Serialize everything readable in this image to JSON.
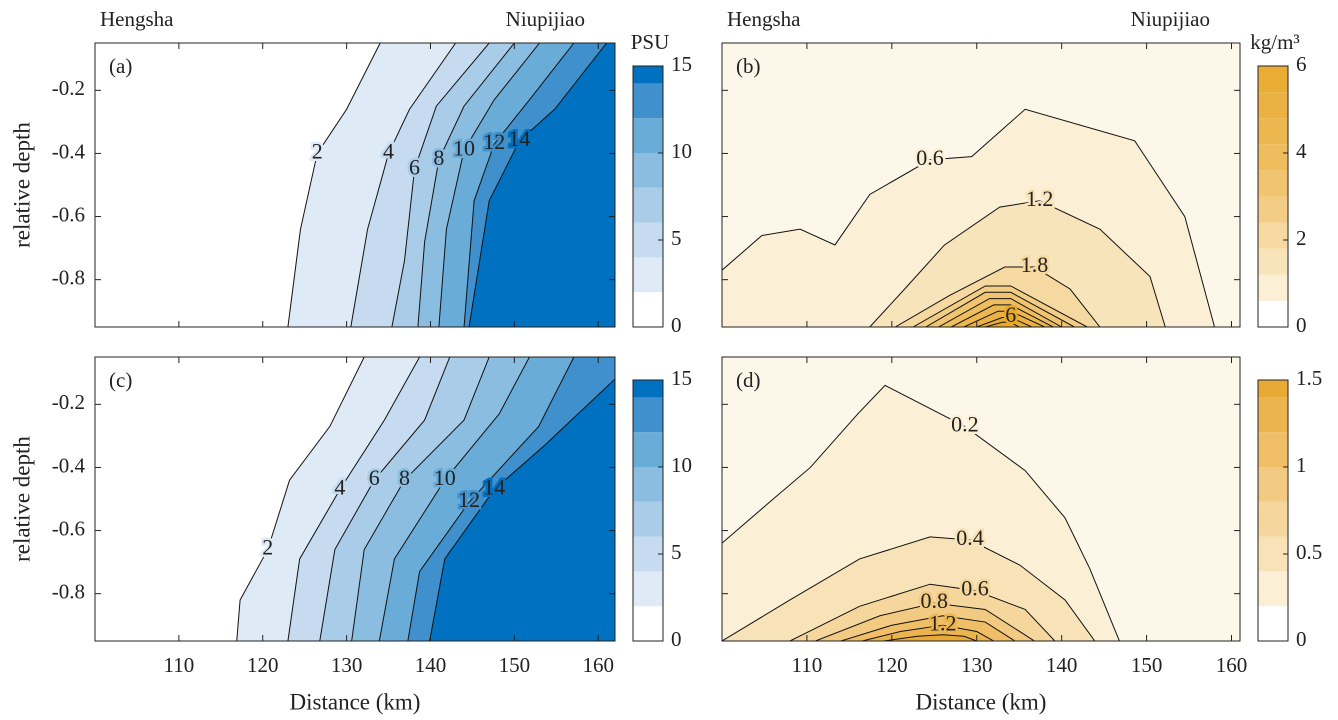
{
  "chart_data": [
    {
      "type": "contour",
      "panel_label": "(a)",
      "top_left_label": "Hengsha",
      "top_right_label": "Niupijiao",
      "colorbar_title": "PSU",
      "y_label": "relative depth",
      "xlim": [
        100,
        162
      ],
      "xticks": [
        110,
        120,
        130,
        140,
        150,
        160
      ],
      "xtick_labels": false,
      "ylim": [
        -0.95,
        -0.05
      ],
      "yticks": [
        -0.8,
        -0.6,
        -0.4,
        -0.2
      ],
      "ytick_labels": true,
      "clim": [
        0,
        15
      ],
      "cticks": [
        0,
        5,
        10,
        15
      ],
      "background": "#ffffff",
      "fill_side": "right",
      "contours": [
        {
          "level": 2,
          "color": "#deebf7",
          "labeled": true,
          "x": [
            134,
            130,
            126.5,
            124.5,
            123
          ],
          "y": [
            -0.05,
            -0.26,
            -0.4,
            -0.64,
            -0.95
          ]
        },
        {
          "level": 4,
          "color": "#c6dbef",
          "labeled": true,
          "x": [
            143,
            137.5,
            135,
            132.5,
            130.5
          ],
          "y": [
            -0.05,
            -0.26,
            -0.4,
            -0.64,
            -0.95
          ]
        },
        {
          "level": 6,
          "color": "#a9cde9",
          "labeled": true,
          "x": [
            147,
            140.7,
            138.1,
            136.9,
            135.4
          ],
          "y": [
            -0.05,
            -0.25,
            -0.45,
            -0.74,
            -0.95
          ]
        },
        {
          "level": 8,
          "color": "#8bbde0",
          "labeled": true,
          "x": [
            150,
            144,
            141,
            139.3,
            138.5
          ],
          "y": [
            -0.05,
            -0.25,
            -0.42,
            -0.68,
            -0.95
          ]
        },
        {
          "level": 10,
          "color": "#69acd8",
          "labeled": true,
          "x": [
            153,
            147.6,
            144,
            141.9,
            141
          ],
          "y": [
            -0.05,
            -0.23,
            -0.39,
            -0.64,
            -0.95
          ]
        },
        {
          "level": 12,
          "color": "#3f90cc",
          "labeled": true,
          "x": [
            157.1,
            151.8,
            147.6,
            145.2,
            144
          ],
          "y": [
            -0.05,
            -0.23,
            -0.37,
            -0.55,
            -0.95
          ]
        },
        {
          "level": 14,
          "color": "#0070c0",
          "labeled": true,
          "x": [
            161,
            154.8,
            150.6,
            147,
            144.6
          ],
          "y": [
            -0.05,
            -0.26,
            -0.36,
            -0.55,
            -0.95
          ]
        }
      ]
    },
    {
      "type": "contour",
      "panel_label": "(b)",
      "top_left_label": "Hengsha",
      "top_right_label": "Niupijiao",
      "colorbar_title": "kg/m³",
      "xlim": [
        100,
        161
      ],
      "xticks": [
        110,
        120,
        130,
        140,
        150,
        160
      ],
      "xtick_labels": false,
      "ylim": [
        -0.95,
        -0.05
      ],
      "yticks": [
        -0.8,
        -0.6,
        -0.4,
        -0.2
      ],
      "ytick_labels": false,
      "clim": [
        0,
        6
      ],
      "cticks": [
        0,
        2,
        4,
        6
      ],
      "background": "#fdf7ea",
      "fill_side": "below",
      "contours": [
        {
          "level": 0.6,
          "color": "#fbefd6",
          "labeled": true,
          "x": [
            100,
            104.7,
            109.2,
            113.3,
            117.4,
            124.5,
            129.4,
            135.7,
            148.6,
            154.5,
            158
          ],
          "y": [
            -0.77,
            -0.66,
            -0.64,
            -0.69,
            -0.53,
            -0.42,
            -0.41,
            -0.26,
            -0.36,
            -0.6,
            -0.95
          ]
        },
        {
          "level": 1.2,
          "color": "#f8e4bb",
          "labeled": true,
          "x": [
            117.4,
            121.5,
            126.2,
            132.7,
            137.4,
            144.5,
            150.4,
            152.2
          ],
          "y": [
            -0.95,
            -0.83,
            -0.69,
            -0.57,
            -0.55,
            -0.64,
            -0.79,
            -0.95
          ]
        },
        {
          "level": 1.8,
          "color": "#f6d9a0",
          "labeled": true,
          "x": [
            120.4,
            126.8,
            133.3,
            136.8,
            141,
            144.5
          ],
          "y": [
            -0.95,
            -0.85,
            -0.76,
            -0.76,
            -0.83,
            -0.95
          ]
        },
        {
          "level": 2.4,
          "color": "#f3cd85",
          "labeled": false,
          "x": [
            122.5,
            131,
            134,
            143
          ],
          "y": [
            -0.95,
            -0.82,
            -0.82,
            -0.95
          ]
        },
        {
          "level": 3,
          "color": "#f1c471",
          "labeled": false,
          "x": [
            124,
            131,
            134,
            141.5
          ],
          "y": [
            -0.95,
            -0.84,
            -0.84,
            -0.95
          ]
        },
        {
          "level": 3.6,
          "color": "#efbd5e",
          "labeled": false,
          "x": [
            125.5,
            131.5,
            134,
            140
          ],
          "y": [
            -0.95,
            -0.86,
            -0.86,
            -0.95
          ]
        },
        {
          "level": 4.2,
          "color": "#edb74f",
          "labeled": false,
          "x": [
            127,
            132,
            134,
            139
          ],
          "y": [
            -0.95,
            -0.88,
            -0.88,
            -0.95
          ]
        },
        {
          "level": 4.8,
          "color": "#ebb243",
          "labeled": false,
          "x": [
            128.5,
            132.5,
            134,
            138
          ],
          "y": [
            -0.95,
            -0.9,
            -0.9,
            -0.95
          ]
        },
        {
          "level": 5.4,
          "color": "#e9ad36",
          "labeled": false,
          "x": [
            130,
            133,
            134,
            136.5
          ],
          "y": [
            -0.95,
            -0.92,
            -0.92,
            -0.95
          ]
        },
        {
          "level": 6,
          "color": "#e8a828",
          "labeled": true,
          "x": [
            131,
            133,
            134,
            135
          ],
          "y": [
            -0.95,
            -0.935,
            -0.935,
            -0.95
          ]
        }
      ]
    },
    {
      "type": "contour",
      "panel_label": "(c)",
      "y_label": "relative depth",
      "x_label": "Distance (km)",
      "xlim": [
        100,
        162
      ],
      "xticks": [
        110,
        120,
        130,
        140,
        150,
        160
      ],
      "xtick_labels": true,
      "ylim": [
        -0.95,
        -0.05
      ],
      "yticks": [
        -0.8,
        -0.6,
        -0.4,
        -0.2
      ],
      "ytick_labels": true,
      "clim": [
        0,
        15
      ],
      "cticks": [
        0,
        5,
        10,
        15
      ],
      "background": "#ffffff",
      "fill_side": "right",
      "contours": [
        {
          "level": 2,
          "color": "#deebf7",
          "labeled": true,
          "x": [
            132.1,
            128,
            123.2,
            120.6,
            117.3,
            116.9
          ],
          "y": [
            -0.05,
            -0.27,
            -0.44,
            -0.66,
            -0.82,
            -0.95
          ]
        },
        {
          "level": 4,
          "color": "#c6dbef",
          "labeled": true,
          "x": [
            138.7,
            134.5,
            129.2,
            124.4,
            123
          ],
          "y": [
            -0.05,
            -0.25,
            -0.47,
            -0.69,
            -0.95
          ]
        },
        {
          "level": 6,
          "color": "#a9cde9",
          "labeled": true,
          "x": [
            142.3,
            139.3,
            133.3,
            128.6,
            126.8
          ],
          "y": [
            -0.05,
            -0.25,
            -0.44,
            -0.66,
            -0.95
          ]
        },
        {
          "level": 8,
          "color": "#8bbde0",
          "labeled": true,
          "x": [
            147,
            144,
            136.9,
            132.1,
            130.6
          ],
          "y": [
            -0.05,
            -0.25,
            -0.44,
            -0.66,
            -0.95
          ]
        },
        {
          "level": 10,
          "color": "#69acd8",
          "labeled": true,
          "x": [
            151.8,
            148.2,
            141.7,
            135.7,
            133.9
          ],
          "y": [
            -0.05,
            -0.23,
            -0.44,
            -0.69,
            -0.95
          ]
        },
        {
          "level": 12,
          "color": "#3f90cc",
          "labeled": true,
          "x": [
            157.1,
            152.9,
            144.6,
            138.7,
            137.3
          ],
          "y": [
            -0.05,
            -0.27,
            -0.51,
            -0.73,
            -0.95
          ]
        },
        {
          "level": 14,
          "color": "#0070c0",
          "labeled": true,
          "x": [
            162,
            153.6,
            147.6,
            141.7,
            139.9
          ],
          "y": [
            -0.12,
            -0.33,
            -0.47,
            -0.69,
            -0.95
          ]
        }
      ]
    },
    {
      "type": "contour",
      "panel_label": "(d)",
      "x_label": "Distance (km)",
      "xlim": [
        100,
        161
      ],
      "xticks": [
        110,
        120,
        130,
        140,
        150,
        160
      ],
      "xtick_labels": true,
      "ylim": [
        -0.95,
        -0.05
      ],
      "yticks": [
        -0.8,
        -0.6,
        -0.4,
        -0.2
      ],
      "ytick_labels": false,
      "clim": [
        0,
        1.5
      ],
      "cticks": [
        0,
        0.5,
        1,
        1.5
      ],
      "background": "#fdf7ea",
      "fill_side": "below",
      "contours": [
        {
          "level": 0.2,
          "color": "#fbefd6",
          "labeled": true,
          "x": [
            100,
            105.6,
            110.4,
            116,
            119.2,
            128.6,
            135.7,
            140.4,
            143.3,
            146.8
          ],
          "y": [
            -0.64,
            -0.51,
            -0.4,
            -0.23,
            -0.14,
            -0.27,
            -0.41,
            -0.56,
            -0.72,
            -0.95
          ]
        },
        {
          "level": 0.4,
          "color": "#f8e3b8",
          "labeled": true,
          "x": [
            100,
            108,
            116.2,
            124.5,
            129.2,
            135.1,
            140.4,
            143.9
          ],
          "y": [
            -0.95,
            -0.82,
            -0.69,
            -0.62,
            -0.63,
            -0.71,
            -0.82,
            -0.95
          ]
        },
        {
          "level": 0.6,
          "color": "#f5d69c",
          "labeled": true,
          "x": [
            108,
            116.2,
            124.5,
            129.8,
            135.7,
            139.2
          ],
          "y": [
            -0.95,
            -0.84,
            -0.77,
            -0.79,
            -0.85,
            -0.95
          ]
        },
        {
          "level": 0.8,
          "color": "#f2ca82",
          "labeled": true,
          "x": [
            111,
            118.6,
            125,
            131,
            136.8
          ],
          "y": [
            -0.95,
            -0.87,
            -0.83,
            -0.85,
            -0.95
          ]
        },
        {
          "level": 1,
          "color": "#efbe66",
          "labeled": false,
          "x": [
            114,
            120,
            126,
            131,
            134.5
          ],
          "y": [
            -0.95,
            -0.9,
            -0.87,
            -0.89,
            -0.95
          ]
        },
        {
          "level": 1.2,
          "color": "#ecb44e",
          "labeled": true,
          "x": [
            116.5,
            121,
            126,
            130,
            132
          ],
          "y": [
            -0.95,
            -0.92,
            -0.9,
            -0.92,
            -0.95
          ]
        },
        {
          "level": 1.4,
          "color": "#e9aa35",
          "labeled": false,
          "x": [
            119,
            123,
            126,
            128.5,
            130
          ],
          "y": [
            -0.95,
            -0.935,
            -0.93,
            -0.935,
            -0.95
          ]
        }
      ]
    }
  ]
}
